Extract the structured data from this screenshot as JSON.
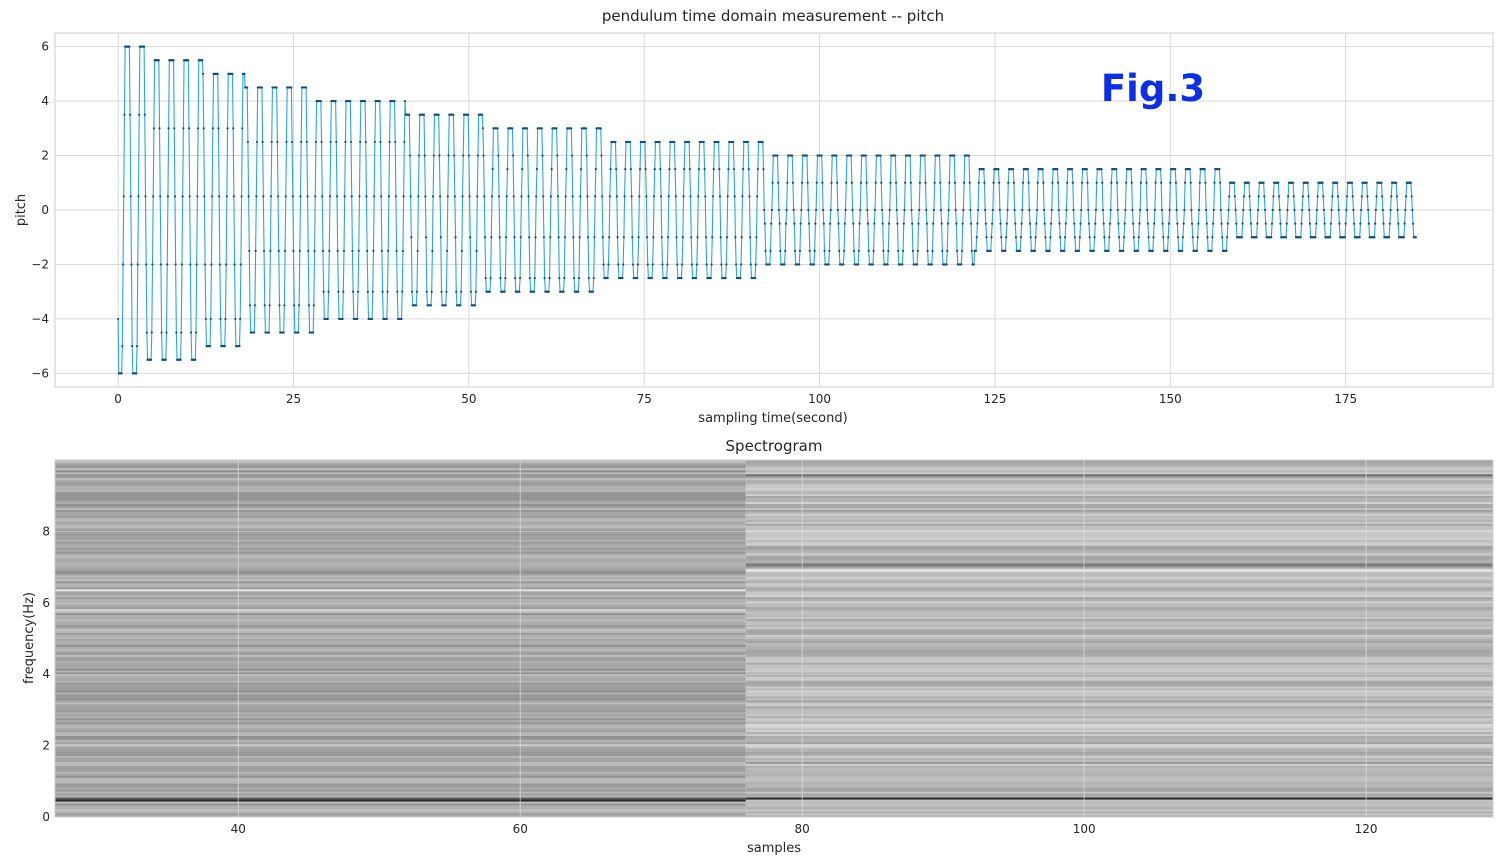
{
  "chart_data": [
    {
      "type": "line",
      "title": "pendulum time domain measurement -- pitch",
      "xlabel": "sampling time(second)",
      "ylabel": "pitch",
      "annotation": "Fig.3",
      "annotation_color": "#0a2fe6",
      "line_color": "#2aa6de",
      "marker_color": "#14507a",
      "xlim": [
        -9,
        196
      ],
      "ylim": [
        -6.5,
        6.5
      ],
      "xticks": [
        0,
        25,
        50,
        75,
        100,
        125,
        150,
        175
      ],
      "xtick_labels": [
        "0",
        "25",
        "50",
        "75",
        "100",
        "125",
        "150",
        "175"
      ],
      "yticks": [
        -6,
        -4,
        -2,
        0,
        2,
        4,
        6
      ],
      "ytick_labels": [
        "−6",
        "−4",
        "−2",
        "0",
        "2",
        "4",
        "6"
      ],
      "grid": true,
      "period_seconds": 2.1,
      "sample_interval_seconds": 0.1,
      "duration_seconds": 185,
      "start_value": -4,
      "end_value": -1,
      "amplitude_segments": [
        {
          "from": 0,
          "to": 4,
          "max": 6,
          "min": -6
        },
        {
          "from": 4,
          "to": 12,
          "max": 5.5,
          "min": -5.5
        },
        {
          "from": 12,
          "to": 18,
          "max": 5,
          "min": -5
        },
        {
          "from": 18,
          "to": 28,
          "max": 4.5,
          "min": -4.5
        },
        {
          "from": 28,
          "to": 41,
          "max": 4,
          "min": -4
        },
        {
          "from": 41,
          "to": 52,
          "max": 3.5,
          "min": -3.5
        },
        {
          "from": 52,
          "to": 69,
          "max": 3,
          "min": -3
        },
        {
          "from": 69,
          "to": 92,
          "max": 2.5,
          "min": -2.5
        },
        {
          "from": 92,
          "to": 122,
          "max": 2,
          "min": -2
        },
        {
          "from": 122,
          "to": 158,
          "max": 1.5,
          "min": -1.5
        },
        {
          "from": 158,
          "to": 185,
          "max": 1,
          "min": -1
        }
      ]
    },
    {
      "type": "heatmap",
      "title": "Spectrogram",
      "xlabel": "samples",
      "ylabel": "frequency(Hz)",
      "xlim": [
        27,
        129
      ],
      "ylim": [
        0,
        10
      ],
      "xticks": [
        40,
        60,
        80,
        100,
        120
      ],
      "xtick_labels": [
        "40",
        "60",
        "80",
        "100",
        "120"
      ],
      "yticks": [
        0,
        2,
        4,
        6,
        8
      ],
      "ytick_labels": [
        "0",
        "2",
        "4",
        "6",
        "8"
      ],
      "grid": true,
      "colormap": "gray",
      "segments": [
        {
          "from": 27,
          "to": 76,
          "base_gray": 168,
          "dark_bands": [
            {
              "freq": 0.46,
              "gray": 40
            },
            {
              "freq": 0.55,
              "gray": 90
            },
            {
              "freq": 2.25,
              "gray": 140
            },
            {
              "freq": 4.05,
              "gray": 130
            },
            {
              "freq": 6.6,
              "gray": 150
            },
            {
              "freq": 9.7,
              "gray": 140
            }
          ],
          "light_bands": [
            {
              "freq": 6.35,
              "gray": 230
            },
            {
              "freq": 5.8,
              "gray": 215
            }
          ]
        },
        {
          "from": 76,
          "to": 129,
          "base_gray": 185,
          "dark_bands": [
            {
              "freq": 0.5,
              "gray": 40
            },
            {
              "freq": 7.1,
              "gray": 120
            },
            {
              "freq": 7.05,
              "gray": 140
            },
            {
              "freq": 9.6,
              "gray": 110
            },
            {
              "freq": 1.5,
              "gray": 150
            }
          ],
          "light_bands": [
            {
              "freq": 6.9,
              "gray": 235
            },
            {
              "freq": 2.6,
              "gray": 220
            }
          ]
        }
      ]
    }
  ]
}
